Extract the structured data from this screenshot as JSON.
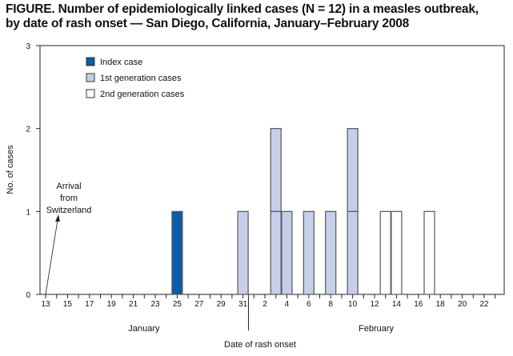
{
  "chart_data": {
    "type": "bar",
    "stacked": true,
    "title_line1": "FIGURE. Number of epidemiologically linked cases (N = 12) in a measles outbreak,",
    "title_line2": "by date of rash onset — San Diego, California, January–February 2008",
    "xlabel": "Date of rash onset",
    "ylabel": "No. of cases",
    "ylim": [
      0,
      3
    ],
    "yticks": [
      "0",
      "1",
      "2",
      "3"
    ],
    "month_labels": [
      "January",
      "February"
    ],
    "x_tick_labels": [
      "13",
      "15",
      "17",
      "19",
      "21",
      "23",
      "25",
      "27",
      "29",
      "31",
      "2",
      "4",
      "6",
      "8",
      "10",
      "12",
      "14",
      "16",
      "18",
      "20",
      "22"
    ],
    "x_range": [
      "Jan 13",
      "Feb 23"
    ],
    "legend_position": "top-left",
    "series": [
      {
        "name": "Index case",
        "color": "#0a5ea8",
        "points": [
          {
            "date": "Jan 25",
            "value": 1
          }
        ]
      },
      {
        "name": "1st generation cases",
        "color": "#c6cfea",
        "points": [
          {
            "date": "Jan 31",
            "value": 1
          },
          {
            "date": "Feb 3",
            "value": 2
          },
          {
            "date": "Feb 4",
            "value": 1
          },
          {
            "date": "Feb 6",
            "value": 1
          },
          {
            "date": "Feb 8",
            "value": 1
          },
          {
            "date": "Feb 10",
            "value": 2
          }
        ]
      },
      {
        "name": "2nd generation cases",
        "color": "#ffffff",
        "points": [
          {
            "date": "Feb 13",
            "value": 1
          },
          {
            "date": "Feb 14",
            "value": 1
          },
          {
            "date": "Feb 17",
            "value": 1
          }
        ]
      }
    ],
    "annotations": [
      {
        "lines": [
          "Arrival",
          "from",
          "Switzerland"
        ],
        "date": "Jan 13"
      }
    ],
    "grid": false
  }
}
